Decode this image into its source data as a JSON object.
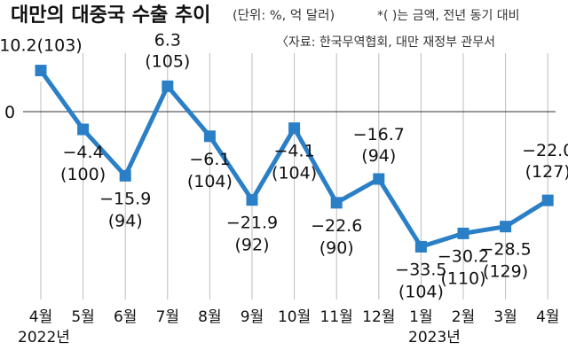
{
  "colors": {
    "line": "#2a7fc6",
    "marker": "#2a7fc6",
    "grid": "#bdbdbd",
    "zero": "#333333"
  },
  "chart_data": {
    "type": "line",
    "title": "대만의 대중국 수출 추이",
    "unit_note": "(단위: %, 억 달러)",
    "legend_note": "*(  )는 금액, 전년 동기 대비",
    "source": "〈자료: 한국무역협회, 대만 재정부 관무서",
    "categories": [
      "4월",
      "5월",
      "6월",
      "7월",
      "8월",
      "9월",
      "10월",
      "11월",
      "12월",
      "1월",
      "2월",
      "3월",
      "4월"
    ],
    "year_labels": [
      "2022년",
      "2023년"
    ],
    "y_ticks": [
      "0"
    ],
    "grid": true,
    "series": [
      {
        "values": [
          10.2,
          -4.4,
          -15.9,
          6.3,
          -6.1,
          -21.9,
          -4.1,
          -22.6,
          -16.7,
          -33.5,
          -30.2,
          -28.5,
          -22.0
        ],
        "amounts": [
          103,
          100,
          94,
          105,
          104,
          92,
          104,
          90,
          94,
          104,
          110,
          129,
          127
        ]
      }
    ],
    "value_labels": [
      "10.2(103)",
      "−4.4",
      "−15.9",
      "6.3",
      "−6.1",
      "−21.9",
      "−4.1",
      "−22.6",
      "−16.7",
      "−33.5",
      "−30.2",
      "−28.5",
      "−22.0"
    ],
    "amount_labels": [
      "",
      "(100)",
      "(94)",
      "(105)",
      "(104)",
      "(92)",
      "(104)",
      "(90)",
      "(94)",
      "(104)",
      "(110)",
      "(129)",
      "(127)"
    ]
  }
}
